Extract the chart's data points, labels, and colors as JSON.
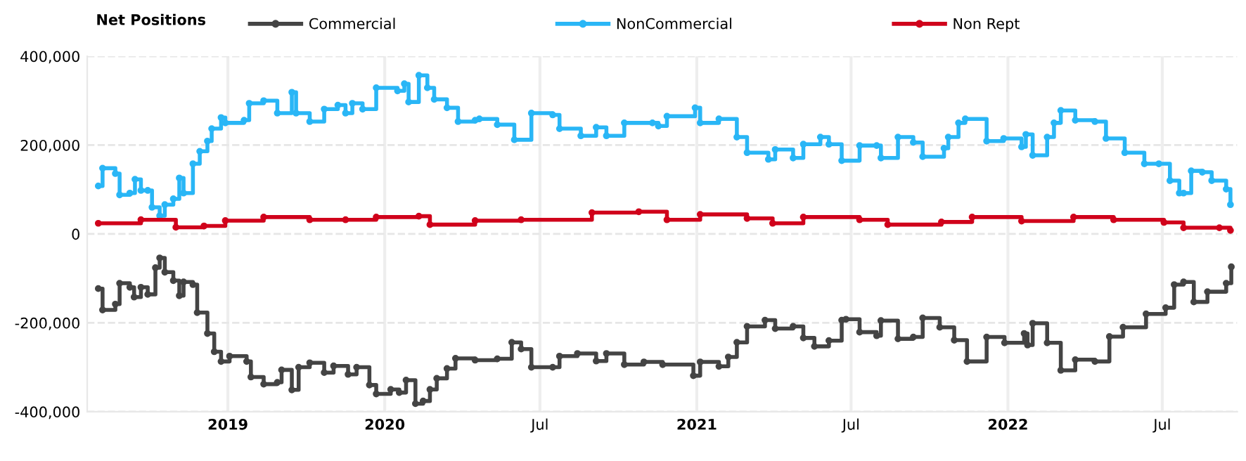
{
  "chart_data": {
    "type": "step",
    "legend_title": "Net Positions",
    "legend": "top",
    "grid": true,
    "marker": "circle",
    "line_style": "solid",
    "xlim": [
      "2019-01-17",
      "2022-09-27"
    ],
    "ylim": [
      -400000,
      400000
    ],
    "xticks": [
      {
        "value": "2019-07-01",
        "label": "2019"
      },
      {
        "value": "2020-01-01",
        "label": "2020"
      },
      {
        "value": "2020-07-01",
        "label": "Jul"
      },
      {
        "value": "2021-01-01",
        "label": "2021"
      },
      {
        "value": "2021-07-01",
        "label": "Jul"
      },
      {
        "value": "2022-01-01",
        "label": "2022"
      },
      {
        "value": "2022-07-01",
        "label": "Jul"
      }
    ],
    "yticks": [
      {
        "value": -400000,
        "label": "-400,000"
      },
      {
        "value": -200000,
        "label": "-200,000"
      },
      0,
      {
        "value": 200000,
        "label": "200,000"
      },
      {
        "value": 400000,
        "label": "400,000"
      }
    ],
    "series": [
      {
        "name": "Commercial",
        "color": "#444444",
        "x": [
          "2019-01-30",
          "2019-02-04",
          "2019-02-19",
          "2019-02-24",
          "2019-03-08",
          "2019-03-13",
          "2019-03-21",
          "2019-03-29",
          "2019-04-07",
          "2019-04-12",
          "2019-04-18",
          "2019-04-28",
          "2019-05-05",
          "2019-05-10",
          "2019-05-21",
          "2019-05-26",
          "2019-06-07",
          "2019-06-15",
          "2019-06-23",
          "2019-07-03",
          "2019-07-23",
          "2019-07-28",
          "2019-08-12",
          "2019-08-28",
          "2019-09-02",
          "2019-09-14",
          "2019-09-22",
          "2019-10-05",
          "2019-10-22",
          "2019-11-02",
          "2019-11-19",
          "2019-11-29",
          "2019-12-14",
          "2019-12-22",
          "2020-01-08",
          "2020-01-18",
          "2020-01-26",
          "2020-02-06",
          "2020-02-15",
          "2020-02-23",
          "2020-03-02",
          "2020-03-14",
          "2020-03-24",
          "2020-04-16",
          "2020-05-12",
          "2020-05-29",
          "2020-06-09",
          "2020-06-21",
          "2020-07-16",
          "2020-07-24",
          "2020-08-14",
          "2020-09-05",
          "2020-09-17",
          "2020-10-08",
          "2020-10-31",
          "2020-11-22",
          "2020-12-28",
          "2021-01-05",
          "2021-01-27",
          "2021-02-07",
          "2021-02-17",
          "2021-03-01",
          "2021-03-22",
          "2021-04-03",
          "2021-04-24",
          "2021-05-06",
          "2021-05-19",
          "2021-06-05",
          "2021-06-20",
          "2021-06-25",
          "2021-07-11",
          "2021-07-31",
          "2021-08-05",
          "2021-08-25",
          "2021-09-12",
          "2021-09-23",
          "2021-10-13",
          "2021-10-30",
          "2021-11-14",
          "2021-12-07",
          "2021-12-28",
          "2022-01-20",
          "2022-01-24",
          "2022-01-30",
          "2022-02-16",
          "2022-03-04",
          "2022-03-21",
          "2022-04-13",
          "2022-04-30",
          "2022-05-16",
          "2022-06-12",
          "2022-07-05",
          "2022-07-15",
          "2022-07-26",
          "2022-08-07",
          "2022-08-23",
          "2022-09-14",
          "2022-09-20"
        ],
        "values": [
          -123000,
          -171000,
          -158000,
          -111000,
          -120000,
          -142000,
          -120000,
          -136000,
          -76000,
          -54000,
          -86000,
          -105000,
          -139000,
          -108000,
          -114000,
          -177000,
          -224000,
          -265000,
          -287000,
          -275000,
          -287000,
          -322000,
          -338000,
          -334000,
          -306000,
          -351000,
          -300000,
          -290000,
          -312000,
          -297000,
          -316000,
          -300000,
          -340000,
          -360000,
          -350000,
          -357000,
          -329000,
          -382000,
          -376000,
          -350000,
          -325000,
          -303000,
          -280000,
          -284000,
          -281000,
          -244000,
          -259000,
          -300000,
          -300000,
          -275000,
          -269000,
          -286000,
          -269000,
          -294000,
          -288000,
          -294000,
          -319000,
          -288000,
          -298000,
          -277000,
          -244000,
          -208000,
          -194000,
          -213000,
          -208000,
          -234000,
          -253000,
          -240000,
          -194000,
          -192000,
          -221000,
          -229000,
          -195000,
          -236000,
          -232000,
          -189000,
          -210000,
          -239000,
          -287000,
          -232000,
          -245000,
          -224000,
          -250000,
          -201000,
          -245000,
          -307000,
          -283000,
          -287000,
          -231000,
          -210000,
          -180000,
          -166000,
          -114000,
          -108000,
          -153000,
          -130000,
          -111000,
          -74000
        ]
      },
      {
        "name": "NonCommercial",
        "color": "#29b6f6",
        "x": [
          "2019-01-30",
          "2019-02-04",
          "2019-02-19",
          "2019-02-24",
          "2019-03-08",
          "2019-03-14",
          "2019-03-21",
          "2019-03-29",
          "2019-04-03",
          "2019-04-12",
          "2019-04-18",
          "2019-04-28",
          "2019-05-05",
          "2019-05-10",
          "2019-05-21",
          "2019-05-29",
          "2019-06-07",
          "2019-06-12",
          "2019-06-23",
          "2019-06-28",
          "2019-07-20",
          "2019-07-26",
          "2019-08-12",
          "2019-08-28",
          "2019-09-14",
          "2019-09-19",
          "2019-10-05",
          "2019-10-22",
          "2019-11-07",
          "2019-11-16",
          "2019-11-24",
          "2019-12-06",
          "2019-12-22",
          "2020-01-16",
          "2020-01-24",
          "2020-01-29",
          "2020-02-10",
          "2020-02-20",
          "2020-02-28",
          "2020-03-14",
          "2020-03-27",
          "2020-04-16",
          "2020-04-21",
          "2020-05-12",
          "2020-06-01",
          "2020-06-21",
          "2020-07-16",
          "2020-07-24",
          "2020-08-18",
          "2020-09-05",
          "2020-09-17",
          "2020-10-08",
          "2020-11-10",
          "2020-11-17",
          "2020-11-27",
          "2020-12-30",
          "2021-01-05",
          "2021-01-27",
          "2021-02-17",
          "2021-03-01",
          "2021-03-26",
          "2021-04-03",
          "2021-04-24",
          "2021-05-06",
          "2021-05-26",
          "2021-06-05",
          "2021-06-20",
          "2021-07-11",
          "2021-07-31",
          "2021-08-05",
          "2021-08-25",
          "2021-09-12",
          "2021-09-23",
          "2021-10-18",
          "2021-10-23",
          "2021-11-04",
          "2021-11-12",
          "2021-12-07",
          "2021-12-27",
          "2022-01-17",
          "2022-01-22",
          "2022-01-30",
          "2022-02-16",
          "2022-02-24",
          "2022-03-04",
          "2022-03-21",
          "2022-04-13",
          "2022-04-26",
          "2022-05-18",
          "2022-06-10",
          "2022-06-27",
          "2022-07-10",
          "2022-07-21",
          "2022-07-26",
          "2022-08-04",
          "2022-08-17",
          "2022-08-28",
          "2022-09-14",
          "2022-09-19"
        ],
        "values": [
          108000,
          148000,
          136000,
          88000,
          92000,
          123000,
          98000,
          98000,
          60000,
          41000,
          66000,
          79000,
          126000,
          92000,
          158000,
          186000,
          209000,
          237000,
          262000,
          250000,
          256000,
          294000,
          300000,
          272000,
          319000,
          272000,
          253000,
          281000,
          290000,
          272000,
          294000,
          281000,
          329000,
          322000,
          338000,
          297000,
          357000,
          329000,
          303000,
          284000,
          253000,
          256000,
          259000,
          246000,
          212000,
          272000,
          268000,
          237000,
          221000,
          240000,
          221000,
          250000,
          250000,
          243000,
          265000,
          284000,
          250000,
          259000,
          218000,
          183000,
          168000,
          190000,
          171000,
          202000,
          218000,
          202000,
          165000,
          199000,
          199000,
          171000,
          218000,
          206000,
          174000,
          193000,
          218000,
          250000,
          259000,
          209000,
          215000,
          196000,
          224000,
          177000,
          218000,
          250000,
          278000,
          256000,
          253000,
          215000,
          183000,
          158000,
          158000,
          120000,
          92000,
          92000,
          142000,
          139000,
          120000,
          101000,
          66000
        ]
      },
      {
        "name": "Non Rept",
        "color": "#d0021b",
        "x": [
          "2019-01-30",
          "2019-03-21",
          "2019-05-01",
          "2019-06-03",
          "2019-06-28",
          "2019-08-12",
          "2019-10-05",
          "2019-11-16",
          "2019-12-22",
          "2020-02-10",
          "2020-02-23",
          "2020-04-16",
          "2020-06-09",
          "2020-08-31",
          "2020-10-25",
          "2020-11-27",
          "2021-01-05",
          "2021-03-01",
          "2021-03-31",
          "2021-05-06",
          "2021-07-11",
          "2021-08-13",
          "2021-10-15",
          "2021-11-20",
          "2022-01-17",
          "2022-03-19",
          "2022-05-05",
          "2022-07-03",
          "2022-07-26",
          "2022-09-06",
          "2022-09-19"
        ],
        "values": [
          24000,
          32000,
          15000,
          18000,
          30000,
          38000,
          32000,
          32000,
          38000,
          40000,
          21000,
          30000,
          32000,
          48000,
          50000,
          32000,
          44000,
          35000,
          24000,
          38000,
          32000,
          21000,
          27000,
          38000,
          29000,
          38000,
          32000,
          26000,
          14000,
          14000,
          8000
        ]
      }
    ]
  }
}
